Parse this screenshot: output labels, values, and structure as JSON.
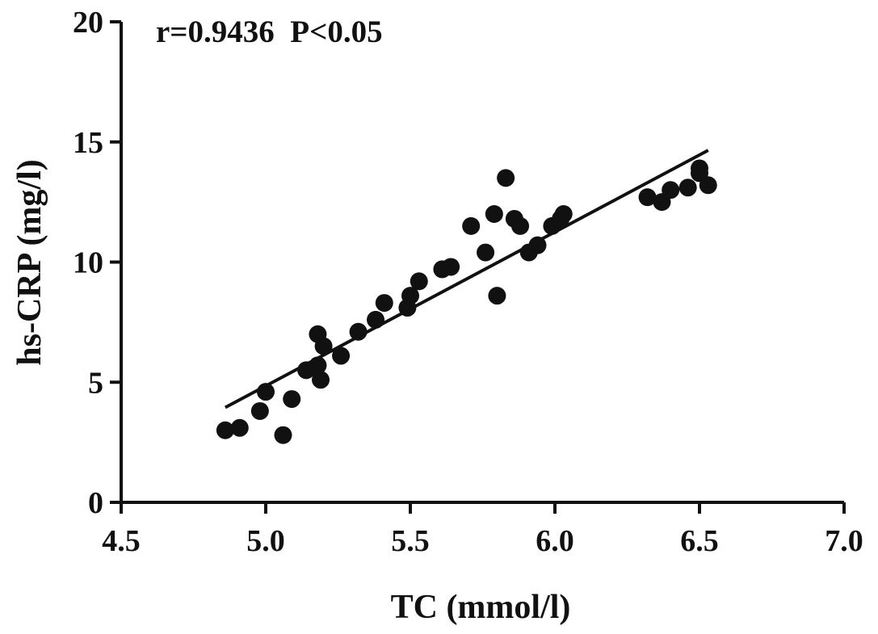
{
  "chart_data": {
    "type": "scatter",
    "xlabel": "TC (mmol/l)",
    "ylabel": "hs-CRP (mg/l)",
    "xlim": [
      4.5,
      7.0
    ],
    "ylim": [
      0,
      20
    ],
    "x_ticks": [
      "4.5",
      "5.0",
      "5.5",
      "6.0",
      "6.5",
      "7.0"
    ],
    "y_ticks": [
      "0",
      "5",
      "10",
      "15",
      "20"
    ],
    "annotation": "r=0.9436  P<0.05",
    "grid": false,
    "legend": "none",
    "colors": {
      "points": "#111111",
      "line": "#111111"
    },
    "series": [
      {
        "kind": "scatter",
        "x": [
          4.86,
          4.91,
          4.98,
          5.0,
          5.06,
          5.09,
          5.14,
          5.18,
          5.18,
          5.19,
          5.2,
          5.26,
          5.32,
          5.38,
          5.41,
          5.49,
          5.5,
          5.53,
          5.61,
          5.64,
          5.71,
          5.76,
          5.79,
          5.8,
          5.83,
          5.86,
          5.88,
          5.91,
          5.94,
          5.99,
          6.02,
          6.03,
          6.32,
          6.37,
          6.4,
          6.46,
          6.5,
          6.5,
          6.53
        ],
        "y": [
          3.0,
          3.1,
          3.8,
          4.6,
          2.8,
          4.3,
          5.5,
          5.7,
          7.0,
          5.1,
          6.5,
          6.1,
          7.1,
          7.6,
          8.3,
          8.1,
          8.6,
          9.2,
          9.7,
          9.8,
          11.5,
          10.4,
          12.0,
          8.6,
          13.5,
          11.8,
          11.5,
          10.4,
          10.7,
          11.5,
          11.8,
          12.0,
          12.7,
          12.5,
          13.0,
          13.1,
          13.7,
          13.9,
          13.2
        ]
      },
      {
        "kind": "line",
        "x": [
          4.86,
          6.53
        ],
        "y": [
          3.95,
          14.65
        ]
      }
    ]
  }
}
